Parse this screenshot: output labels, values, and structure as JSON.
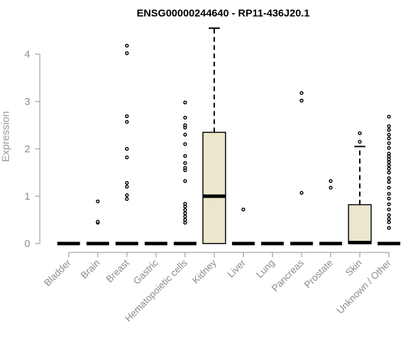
{
  "chart_data": {
    "type": "box",
    "title": "ENSG00000244640 - RP11-436J20.1",
    "xlabel": "",
    "ylabel": "Expression",
    "ylim": [
      0,
      4.5
    ],
    "yticks": [
      0,
      1,
      2,
      3,
      4
    ],
    "grid": false,
    "box_color": "#ece6cc",
    "categories": [
      "Bladder",
      "Brain",
      "Breast",
      "Gastric",
      "Hematopoietic cells",
      "Kidney",
      "Liver",
      "Lung",
      "Pancreas",
      "Prostate",
      "Skin",
      "Unknown / Other"
    ],
    "boxes": [
      {
        "category": "Bladder",
        "min": 0,
        "q1": 0,
        "median": 0,
        "q3": 0,
        "max": 0,
        "outliers": []
      },
      {
        "category": "Brain",
        "min": 0,
        "q1": 0,
        "median": 0,
        "q3": 0,
        "max": 0,
        "outliers": [
          0.44,
          0.46,
          0.89
        ]
      },
      {
        "category": "Breast",
        "min": 0,
        "q1": 0,
        "median": 0,
        "q3": 0,
        "max": 0,
        "outliers": [
          0.94,
          1.02,
          1.2,
          1.28,
          1.82,
          2.0,
          2.57,
          2.69,
          4.02,
          4.18
        ]
      },
      {
        "category": "Gastric",
        "min": 0,
        "q1": 0,
        "median": 0,
        "q3": 0,
        "max": 0,
        "outliers": []
      },
      {
        "category": "Hematopoietic cells",
        "min": 0,
        "q1": 0,
        "median": 0,
        "q3": 0,
        "max": 0,
        "outliers": [
          0.44,
          0.5,
          0.57,
          0.64,
          0.71,
          0.78,
          0.84,
          1.32,
          1.55,
          1.6,
          1.7,
          1.85,
          2.1,
          2.3,
          2.45,
          2.5,
          2.66,
          2.98
        ]
      },
      {
        "category": "Kidney",
        "min": 0,
        "q1": 0,
        "median": 1.0,
        "q3": 2.35,
        "max": 4.55,
        "outliers": []
      },
      {
        "category": "Liver",
        "min": 0,
        "q1": 0,
        "median": 0,
        "q3": 0,
        "max": 0,
        "outliers": [
          0.72
        ]
      },
      {
        "category": "Lung",
        "min": 0,
        "q1": 0,
        "median": 0,
        "q3": 0,
        "max": 0,
        "outliers": []
      },
      {
        "category": "Pancreas",
        "min": 0,
        "q1": 0,
        "median": 0,
        "q3": 0,
        "max": 0,
        "outliers": [
          1.07,
          3.02,
          3.18
        ]
      },
      {
        "category": "Prostate",
        "min": 0,
        "q1": 0,
        "median": 0,
        "q3": 0,
        "max": 0,
        "outliers": [
          1.18,
          1.32
        ]
      },
      {
        "category": "Skin",
        "min": 0,
        "q1": 0,
        "median": 0.02,
        "q3": 0.82,
        "max": 2.05,
        "outliers": [
          2.15,
          2.33
        ]
      },
      {
        "category": "Unknown / Other",
        "min": 0,
        "q1": 0,
        "median": 0,
        "q3": 0,
        "max": 0,
        "outliers": [
          0.33,
          0.45,
          0.52,
          0.6,
          0.72,
          0.83,
          0.95,
          1.05,
          1.18,
          1.3,
          1.38,
          1.5,
          1.58,
          1.65,
          1.72,
          1.78,
          1.84,
          1.9,
          2.02,
          2.12,
          2.22,
          2.3,
          2.4,
          2.48,
          2.68
        ]
      }
    ]
  }
}
